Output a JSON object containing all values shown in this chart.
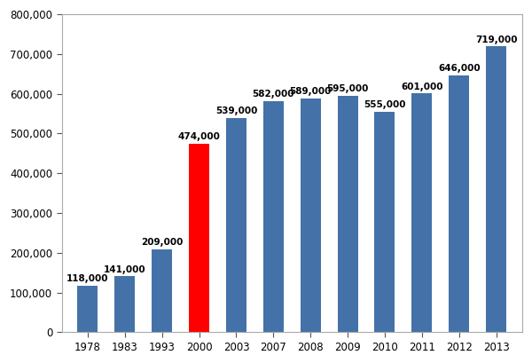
{
  "years": [
    "1978",
    "1983",
    "1993",
    "2000",
    "2003",
    "2007",
    "2008",
    "2009",
    "2010",
    "2011",
    "2012",
    "2013"
  ],
  "values": [
    118000,
    141000,
    209000,
    474000,
    539000,
    582000,
    589000,
    595000,
    555000,
    601000,
    646000,
    719000
  ],
  "bar_colors": [
    "#4472a8",
    "#4472a8",
    "#4472a8",
    "#ff0000",
    "#4472a8",
    "#4472a8",
    "#4472a8",
    "#4472a8",
    "#4472a8",
    "#4472a8",
    "#4472a8",
    "#4472a8"
  ],
  "ylim": [
    0,
    800000
  ],
  "yticks": [
    0,
    100000,
    200000,
    300000,
    400000,
    500000,
    600000,
    700000,
    800000
  ],
  "background_color": "#ffffff",
  "label_fontsize": 7.5,
  "tick_fontsize": 8.5,
  "bar_width": 0.55,
  "border_color": "#aaaaaa",
  "tick_color": "#555555"
}
